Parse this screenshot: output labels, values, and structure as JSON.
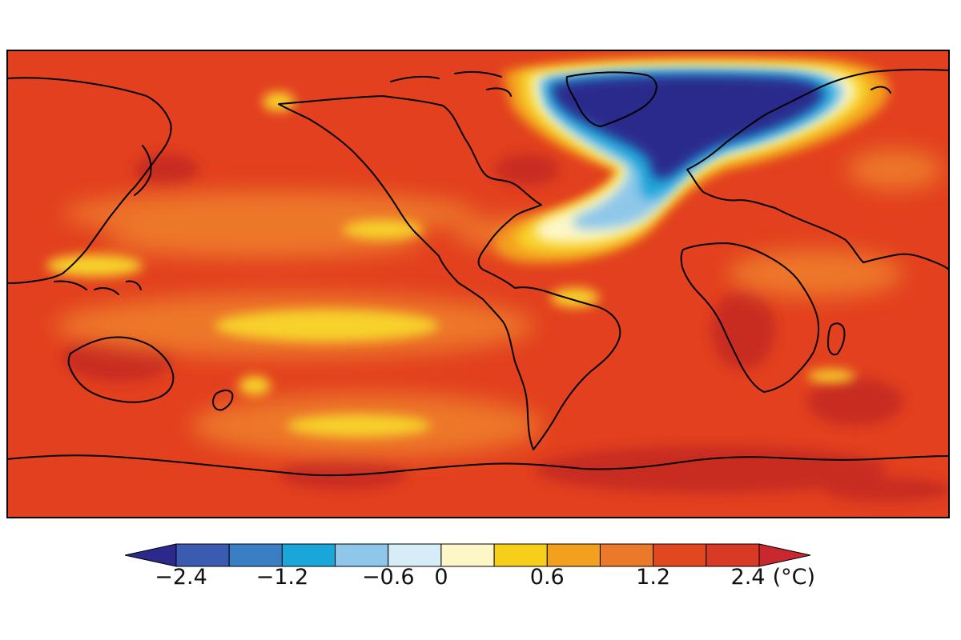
{
  "map": {
    "base_color": "#e2401f",
    "coastline_color": "#000000",
    "fields": [
      {
        "region": "north-atlantic",
        "level": "-2.4"
      },
      {
        "region": "tropical-pacific",
        "level": "0.6"
      },
      {
        "region": "southern-ocean",
        "level": "2.4"
      }
    ]
  },
  "legend": {
    "type": "colorbar",
    "colors": [
      "#2b2a8c",
      "#3a5bb0",
      "#3a7fc3",
      "#1aa6d8",
      "#8ec7ea",
      "#d6ecf6",
      "#fdf7c8",
      "#f7cf1b",
      "#f3a01f",
      "#ea7a29",
      "#e2481f",
      "#d83a25",
      "#c8282e"
    ],
    "ticks": [
      "−2.4",
      "−1.2",
      "−0.6",
      "0",
      "0.6",
      "1.2",
      "2.4"
    ],
    "unit": "(°C)"
  }
}
